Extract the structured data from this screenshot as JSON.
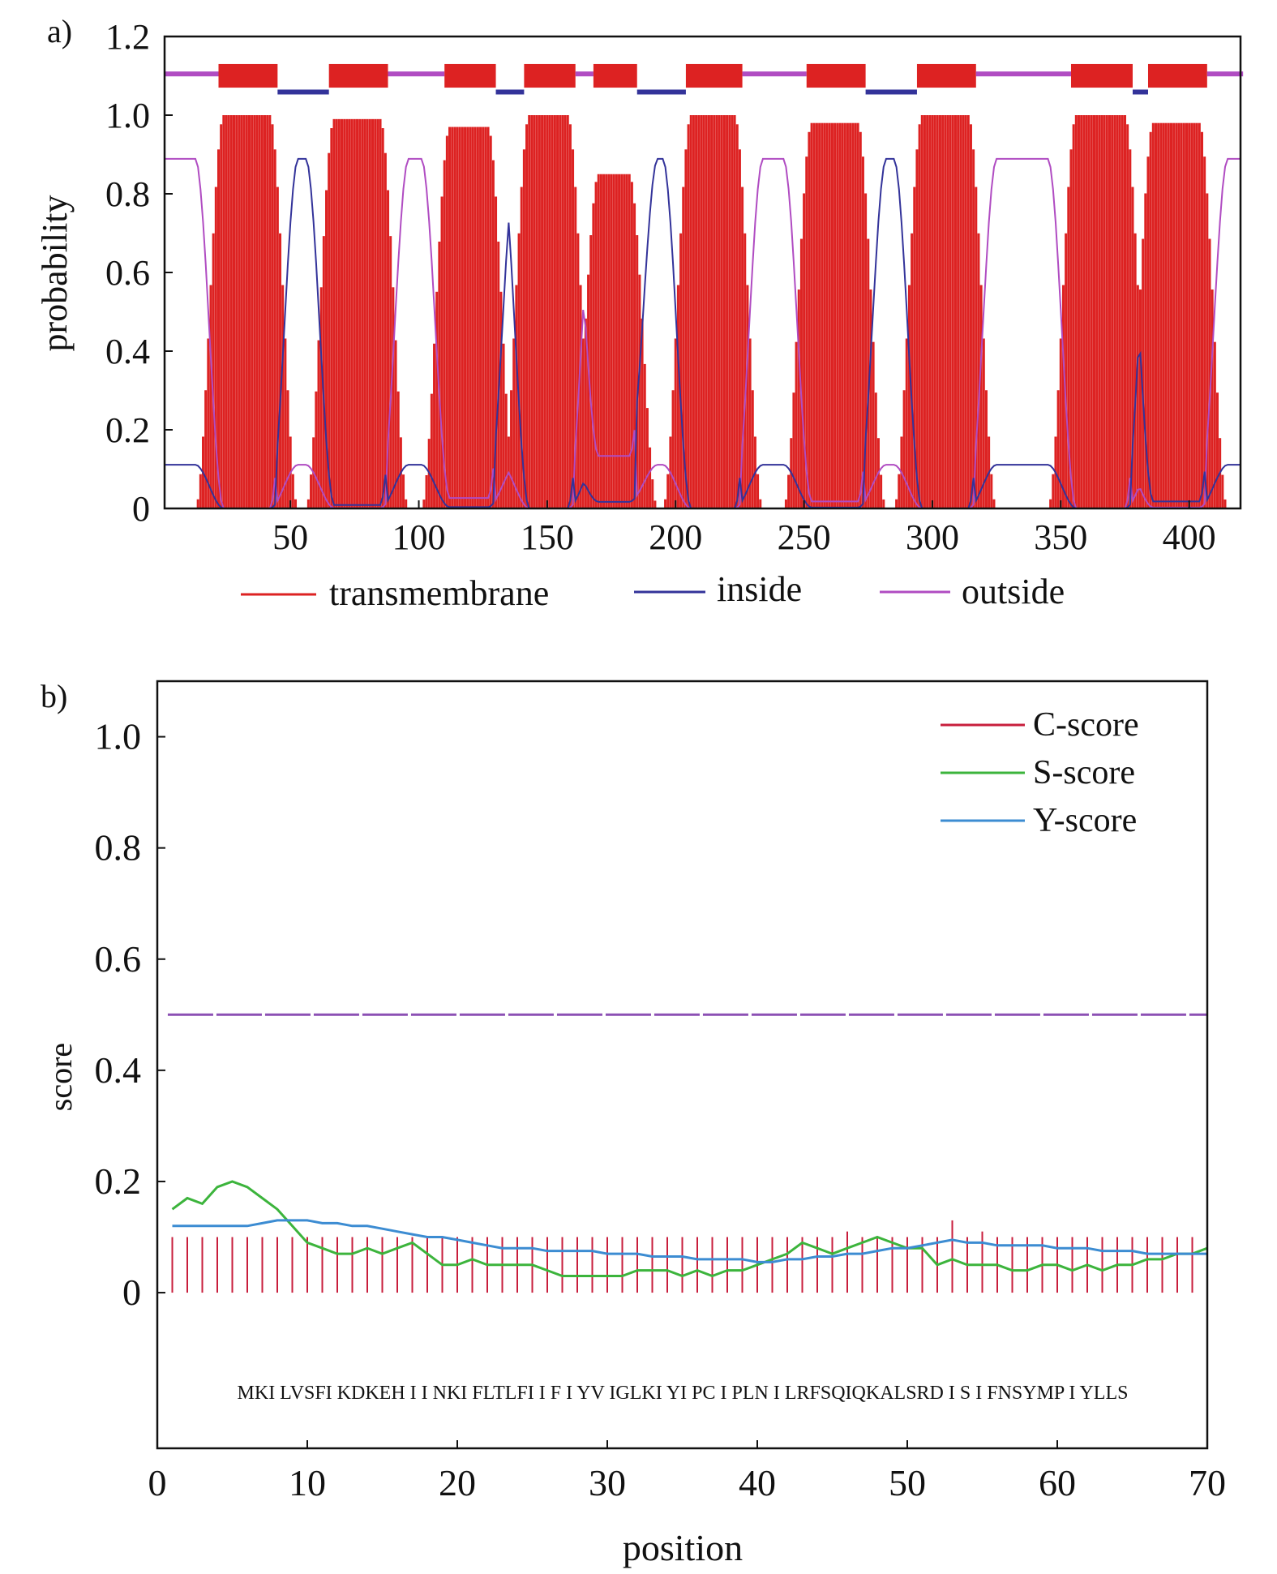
{
  "colors": {
    "transmembrane": "#dd2222",
    "inside": "#33339a",
    "outside": "#b04cc2",
    "c_score": "#c81e3c",
    "s_score": "#3cb43c",
    "y_score": "#3c8cd2",
    "threshold": "#8c50b4",
    "axis": "#111111"
  },
  "chart_data": [
    {
      "type": "area",
      "panel_label": "a)",
      "title": "",
      "xlabel": "",
      "ylabel": "probability",
      "xlim": [
        1,
        420
      ],
      "ylim": [
        0,
        1.2
      ],
      "xticks": [
        50,
        100,
        150,
        200,
        250,
        300,
        350,
        400
      ],
      "yticks": [
        0,
        0.2,
        0.4,
        0.6,
        0.8,
        1.0,
        1.2
      ],
      "ytick_labels": [
        "0",
        "0.2",
        "0.4",
        "0.6",
        "0.8",
        "1.0",
        "1.2"
      ],
      "legend": {
        "placement": "bottom",
        "items": [
          {
            "key": "transmembrane",
            "label": "transmembrane"
          },
          {
            "key": "inside",
            "label": "inside"
          },
          {
            "key": "outside",
            "label": "outside"
          }
        ]
      },
      "tm_helices": [
        {
          "start": 22,
          "end": 44,
          "peak": 1.0
        },
        {
          "start": 65,
          "end": 87,
          "peak": 0.99
        },
        {
          "start": 110,
          "end": 129,
          "peak": 0.97
        },
        {
          "start": 141,
          "end": 160,
          "peak": 1.0
        },
        {
          "start": 168,
          "end": 184,
          "peak": 0.85
        },
        {
          "start": 204,
          "end": 225,
          "peak": 1.0
        },
        {
          "start": 251,
          "end": 273,
          "peak": 0.98
        },
        {
          "start": 294,
          "end": 316,
          "peak": 1.0
        },
        {
          "start": 354,
          "end": 377,
          "peak": 1.0
        },
        {
          "start": 384,
          "end": 406,
          "peak": 0.98
        }
      ],
      "topology": [
        {
          "region": "outside",
          "start": 1,
          "end": 21
        },
        {
          "region": "transmembrane",
          "start": 22,
          "end": 44
        },
        {
          "region": "inside",
          "start": 45,
          "end": 64
        },
        {
          "region": "transmembrane",
          "start": 65,
          "end": 87
        },
        {
          "region": "outside",
          "start": 88,
          "end": 109
        },
        {
          "region": "transmembrane",
          "start": 110,
          "end": 129
        },
        {
          "region": "inside",
          "start": 130,
          "end": 140
        },
        {
          "region": "transmembrane",
          "start": 141,
          "end": 160
        },
        {
          "region": "outside",
          "start": 161,
          "end": 167
        },
        {
          "region": "transmembrane",
          "start": 168,
          "end": 184
        },
        {
          "region": "inside",
          "start": 185,
          "end": 203
        },
        {
          "region": "transmembrane",
          "start": 204,
          "end": 225
        },
        {
          "region": "outside",
          "start": 226,
          "end": 250
        },
        {
          "region": "transmembrane",
          "start": 251,
          "end": 273
        },
        {
          "region": "inside",
          "start": 274,
          "end": 293
        },
        {
          "region": "transmembrane",
          "start": 294,
          "end": 316
        },
        {
          "region": "outside",
          "start": 317,
          "end": 353
        },
        {
          "region": "transmembrane",
          "start": 354,
          "end": 377
        },
        {
          "region": "inside",
          "start": 378,
          "end": 383
        },
        {
          "region": "transmembrane",
          "start": 384,
          "end": 406
        },
        {
          "region": "outside",
          "start": 407,
          "end": 420
        }
      ],
      "region_levels": {
        "outside_inside": [
          0.88,
          0.11
        ],
        "inside_outside": [
          0.11,
          0.88
        ]
      }
    },
    {
      "type": "line",
      "panel_label": "b)",
      "title": "",
      "xlabel": "position",
      "ylabel": "score",
      "xlim": [
        0,
        70
      ],
      "ylim": [
        -0.28,
        1.1
      ],
      "xticks": [
        0,
        10,
        20,
        30,
        40,
        50,
        60,
        70
      ],
      "yticks": [
        0,
        0.2,
        0.4,
        0.6,
        0.8,
        1.0
      ],
      "ytick_labels": [
        "0",
        "0.2",
        "0.4",
        "0.6",
        "0.8",
        "1.0"
      ],
      "threshold": 0.5,
      "legend": {
        "placement": "top-right",
        "items": [
          {
            "key": "c_score",
            "label": "C-score"
          },
          {
            "key": "s_score",
            "label": "S-score"
          },
          {
            "key": "y_score",
            "label": "Y-score"
          }
        ]
      },
      "sequence": [
        "M",
        "K",
        "I",
        "L",
        "V",
        "S",
        "F",
        "I",
        "K",
        "D",
        "K",
        "E",
        "H",
        "I",
        "I",
        "N",
        "K",
        "I",
        "F",
        "L",
        "T",
        "L",
        "F",
        "I",
        "I",
        "F",
        "I",
        "Y",
        "V",
        "I",
        "G",
        "L",
        "K",
        "I",
        "Y",
        "I",
        "P",
        "C",
        "I",
        "P",
        "L",
        "N",
        "I",
        "L",
        "R",
        "F",
        "S",
        "Q",
        "I",
        "Q",
        "K",
        "A",
        "L",
        "S",
        "R",
        "D",
        "I",
        "S",
        "I",
        "F",
        "N",
        "S",
        "Y",
        "M",
        "P",
        "I",
        "Y",
        "L",
        "L",
        "S"
      ],
      "sequence_text": "MKI LVSFI KDKEH I I NKI FLTLFI I F I YV IGLKI YI PC I PLN I LRFSQIQKALSRD I S I FNSYMP I YLLS",
      "c_score": [
        0.1,
        0.1,
        0.1,
        0.1,
        0.1,
        0.1,
        0.1,
        0.1,
        0.1,
        0.1,
        0.1,
        0.1,
        0.1,
        0.1,
        0.1,
        0.1,
        0.1,
        0.1,
        0.1,
        0.1,
        0.1,
        0.1,
        0.1,
        0.1,
        0.1,
        0.1,
        0.1,
        0.1,
        0.1,
        0.1,
        0.1,
        0.1,
        0.1,
        0.1,
        0.1,
        0.1,
        0.1,
        0.1,
        0.1,
        0.1,
        0.1,
        0.1,
        0.1,
        0.1,
        0.1,
        0.11,
        0.1,
        0.1,
        0.1,
        0.1,
        0.1,
        0.1,
        0.13,
        0.1,
        0.11,
        0.1,
        0.1,
        0.1,
        0.1,
        0.1,
        0.1,
        0.1,
        0.1,
        0.1,
        0.1,
        0.1,
        0.1,
        0.1,
        0.1,
        0.1
      ],
      "s_score": [
        0.15,
        0.17,
        0.16,
        0.19,
        0.2,
        0.19,
        0.17,
        0.15,
        0.12,
        0.09,
        0.08,
        0.07,
        0.07,
        0.08,
        0.07,
        0.08,
        0.09,
        0.07,
        0.05,
        0.05,
        0.06,
        0.05,
        0.05,
        0.05,
        0.05,
        0.04,
        0.03,
        0.03,
        0.03,
        0.03,
        0.03,
        0.04,
        0.04,
        0.04,
        0.03,
        0.04,
        0.03,
        0.04,
        0.04,
        0.05,
        0.06,
        0.07,
        0.09,
        0.08,
        0.07,
        0.08,
        0.09,
        0.1,
        0.09,
        0.08,
        0.08,
        0.05,
        0.06,
        0.05,
        0.05,
        0.05,
        0.04,
        0.04,
        0.05,
        0.05,
        0.04,
        0.05,
        0.04,
        0.05,
        0.05,
        0.06,
        0.06,
        0.07,
        0.07,
        0.08
      ],
      "y_score": [
        0.12,
        0.12,
        0.12,
        0.12,
        0.12,
        0.12,
        0.125,
        0.13,
        0.13,
        0.13,
        0.125,
        0.125,
        0.12,
        0.12,
        0.115,
        0.11,
        0.105,
        0.1,
        0.1,
        0.095,
        0.09,
        0.085,
        0.08,
        0.08,
        0.08,
        0.075,
        0.075,
        0.075,
        0.075,
        0.07,
        0.07,
        0.07,
        0.065,
        0.065,
        0.065,
        0.06,
        0.06,
        0.06,
        0.06,
        0.055,
        0.055,
        0.06,
        0.06,
        0.065,
        0.065,
        0.07,
        0.07,
        0.075,
        0.08,
        0.08,
        0.085,
        0.09,
        0.095,
        0.09,
        0.09,
        0.085,
        0.085,
        0.085,
        0.085,
        0.08,
        0.08,
        0.08,
        0.075,
        0.075,
        0.075,
        0.07,
        0.07,
        0.07,
        0.07,
        0.07
      ]
    }
  ]
}
